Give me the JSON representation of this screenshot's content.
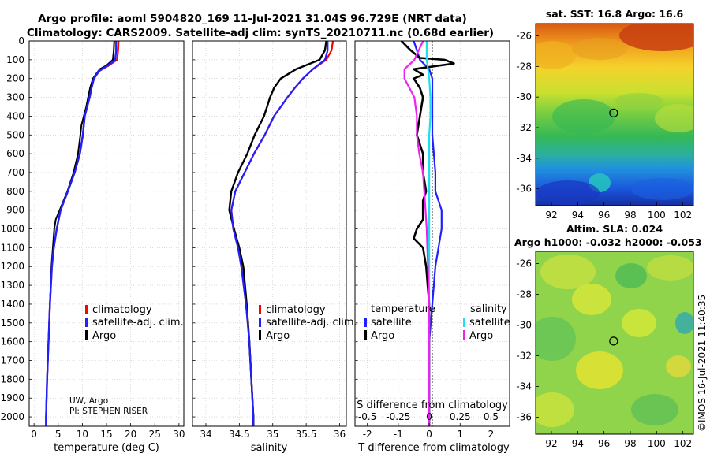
{
  "header": {
    "line1": "Argo profile: aoml 5904820_169 11-Jul-2021 31.04S 96.729E (NRT data)",
    "line2": "Climatology: CARS2009. Satellite-adj clim: synTS_20210711.nc (0.68d earlier)"
  },
  "side_stamp": "©IMOS 16-Jul-2021 11:40:35",
  "colors": {
    "climatology": "#ff0000",
    "satellite": "#2020ff",
    "argo": "#000000",
    "sat_salinity": "#22ddee",
    "argo_salinity": "#ee22ee"
  },
  "chart_data": [
    {
      "type": "line",
      "panel": "temperature",
      "xlabel": "temperature (deg C)",
      "xlim": [
        -1,
        31
      ],
      "xticks": [
        "0",
        "5",
        "10",
        "15",
        "20",
        "25",
        "30"
      ],
      "ylim": [
        0,
        2050
      ],
      "yticks": [
        "0",
        "100",
        "200",
        "300",
        "400",
        "500",
        "600",
        "700",
        "800",
        "900",
        "1000",
        "1100",
        "1200",
        "1300",
        "1400",
        "1500",
        "1600",
        "1700",
        "1800",
        "1900",
        "2000"
      ],
      "legend": [
        "climatology",
        "satellite-adj. clim.",
        "Argo"
      ],
      "annotation": [
        "UW, Argo",
        "PI: STEPHEN RISER"
      ],
      "series": [
        {
          "name": "climatology",
          "depth": [
            0,
            50,
            100,
            130,
            160,
            200,
            250,
            300,
            350,
            400,
            500,
            600,
            700,
            800,
            900,
            1000,
            1100,
            1200,
            1400,
            1600,
            1800,
            2000,
            2050
          ],
          "values": [
            17.5,
            17.4,
            17.2,
            15.5,
            13.5,
            12.4,
            11.9,
            11.5,
            11.0,
            10.5,
            10.1,
            9.5,
            8.4,
            7.0,
            5.5,
            4.7,
            4.1,
            3.7,
            3.3,
            3.0,
            2.7,
            2.5,
            2.5
          ]
        },
        {
          "name": "satellite-adj. clim.",
          "depth": [
            0,
            50,
            100,
            130,
            160,
            200,
            250,
            300,
            350,
            400,
            500,
            600,
            700,
            800,
            900,
            1000,
            1100,
            1200,
            1400,
            1600,
            1800,
            2000,
            2050
          ],
          "values": [
            17.0,
            17.0,
            16.8,
            15.3,
            13.4,
            12.4,
            11.9,
            11.5,
            11.0,
            10.5,
            10.1,
            9.5,
            8.4,
            7.0,
            5.5,
            4.7,
            4.1,
            3.7,
            3.3,
            3.0,
            2.7,
            2.5,
            2.5
          ]
        },
        {
          "name": "Argo",
          "depth": [
            0,
            50,
            100,
            130,
            150,
            170,
            200,
            250,
            300,
            350,
            400,
            450,
            500,
            600,
            700,
            800,
            900,
            950,
            1000,
            1100,
            1200,
            1400,
            1600,
            1800,
            2000,
            2050
          ],
          "values": [
            16.6,
            16.5,
            16.3,
            15.0,
            13.6,
            13.0,
            12.2,
            11.6,
            11.2,
            10.8,
            10.3,
            9.8,
            9.6,
            9.1,
            8.2,
            6.9,
            5.3,
            4.5,
            4.2,
            3.9,
            3.6,
            3.3,
            3.0,
            2.7,
            2.5,
            2.5
          ]
        }
      ]
    },
    {
      "type": "line",
      "panel": "salinity",
      "xlabel": "salinity",
      "xlim": [
        33.8,
        36.1
      ],
      "xticks": [
        "34",
        "34.5",
        "35",
        "35.5",
        "36"
      ],
      "ylim": [
        0,
        2050
      ],
      "legend": [
        "climatology",
        "satellite-adj. clim.",
        "Argo"
      ],
      "series": [
        {
          "name": "climatology",
          "depth": [
            0,
            50,
            100,
            150,
            200,
            250,
            300,
            400,
            500,
            600,
            700,
            800,
            900,
            1000,
            1100,
            1200,
            1400,
            1600,
            1800,
            2000,
            2050
          ],
          "values": [
            35.9,
            35.88,
            35.8,
            35.6,
            35.45,
            35.33,
            35.22,
            35.02,
            34.88,
            34.72,
            34.58,
            34.44,
            34.38,
            34.41,
            34.48,
            34.53,
            34.6,
            34.65,
            34.68,
            34.71,
            34.71
          ]
        },
        {
          "name": "satellite-adj. clim.",
          "depth": [
            0,
            50,
            100,
            150,
            200,
            250,
            300,
            400,
            500,
            600,
            700,
            800,
            900,
            1000,
            1100,
            1200,
            1400,
            1600,
            1800,
            2000,
            2050
          ],
          "values": [
            35.82,
            35.82,
            35.78,
            35.6,
            35.45,
            35.33,
            35.22,
            35.02,
            34.88,
            34.72,
            34.58,
            34.44,
            34.38,
            34.41,
            34.48,
            34.53,
            34.6,
            34.65,
            34.68,
            34.71,
            34.71
          ]
        },
        {
          "name": "Argo",
          "depth": [
            0,
            50,
            100,
            150,
            200,
            250,
            300,
            400,
            500,
            600,
            700,
            800,
            900,
            1000,
            1100,
            1200,
            1400,
            1600,
            1800,
            2000,
            2050
          ],
          "values": [
            35.8,
            35.78,
            35.7,
            35.35,
            35.12,
            35.02,
            34.96,
            34.87,
            34.73,
            34.62,
            34.48,
            34.38,
            34.35,
            34.42,
            34.5,
            34.56,
            34.61,
            34.65,
            34.68,
            34.71,
            34.71
          ]
        }
      ]
    },
    {
      "type": "line",
      "panel": "difference",
      "xlabel": "T difference from climatology",
      "xlabel_top": "S difference from climatology",
      "xlim": [
        -2.4,
        2.6
      ],
      "xticks": [
        "-2",
        "-1",
        "0",
        "1",
        "2"
      ],
      "sticks": [
        "-0.5",
        "-0.25",
        "0",
        "0.25",
        "0.5"
      ],
      "ylim": [
        0,
        2050
      ],
      "legend_temperature_title": "temperature",
      "legend_salinity_title": "salinity",
      "legend_temperature": [
        "satellite",
        "Argo"
      ],
      "legend_salinity": [
        "satellite",
        "Argo"
      ],
      "series": [
        {
          "name": "temperature satellite",
          "depth": [
            0,
            50,
            100,
            150,
            200,
            300,
            500,
            700,
            800,
            900,
            1000,
            1200,
            1600,
            2000,
            2050
          ],
          "values": [
            -0.5,
            -0.4,
            -0.3,
            0.0,
            0.1,
            0.1,
            0.1,
            0.2,
            0.2,
            0.4,
            0.4,
            0.2,
            0.0,
            0.0,
            0.0
          ]
        },
        {
          "name": "temperature Argo",
          "depth": [
            0,
            50,
            90,
            100,
            120,
            150,
            180,
            200,
            250,
            300,
            400,
            500,
            600,
            700,
            800,
            850,
            900,
            950,
            1000,
            1050,
            1100,
            1200,
            1400,
            1600,
            1800,
            2000,
            2050
          ],
          "values": [
            -0.9,
            -0.6,
            -0.3,
            0.5,
            0.8,
            -0.5,
            -0.2,
            -0.5,
            -0.3,
            -0.2,
            -0.3,
            -0.4,
            -0.2,
            -0.2,
            -0.1,
            -0.2,
            -0.2,
            -0.2,
            -0.4,
            -0.5,
            -0.2,
            -0.1,
            0.0,
            0.0,
            0.0,
            0.0,
            0.0
          ]
        },
        {
          "name": "salinity satellite",
          "depth": [
            0,
            100,
            200,
            300,
            400,
            500,
            600,
            700,
            800,
            900,
            1000,
            1200,
            1400,
            1600,
            2000,
            2050
          ],
          "values": [
            -0.02,
            -0.02,
            0.0,
            0.01,
            0.01,
            0.0,
            0.0,
            0.0,
            0.0,
            0.0,
            0.0,
            0.0,
            0.0,
            0.0,
            0.0,
            0.0
          ]
        },
        {
          "name": "salinity Argo",
          "depth": [
            0,
            100,
            150,
            200,
            250,
            300,
            400,
            500,
            600,
            700,
            800,
            900,
            1000,
            1200,
            1400,
            1600,
            2000,
            2050
          ],
          "values": [
            -0.05,
            -0.12,
            -0.2,
            -0.2,
            -0.16,
            -0.12,
            -0.1,
            -0.1,
            -0.08,
            -0.05,
            -0.04,
            -0.03,
            -0.02,
            -0.01,
            0.0,
            0.0,
            0.0,
            0.0
          ]
        }
      ]
    },
    {
      "type": "heatmap",
      "panel": "sst_map",
      "title": "sat. SST: 16.8 Argo: 16.6",
      "xlim": [
        90.8,
        102.8
      ],
      "ylim": [
        -37.1,
        -25.2
      ],
      "xticks": [
        "92",
        "94",
        "96",
        "98",
        "100",
        "102"
      ],
      "yticks": [
        "-26",
        "-28",
        "-30",
        "-32",
        "-34",
        "-36"
      ],
      "marker": [
        96.73,
        -31.04
      ]
    },
    {
      "type": "heatmap",
      "panel": "sla_map",
      "title1": "Altim. SLA: 0.024",
      "title2": "Argo h1000: -0.032 h2000: -0.053",
      "xlim": [
        90.8,
        102.8
      ],
      "ylim": [
        -37.1,
        -25.2
      ],
      "xticks": [
        "92",
        "94",
        "96",
        "98",
        "100",
        "102"
      ],
      "yticks": [
        "-26",
        "-28",
        "-30",
        "-32",
        "-34",
        "-36"
      ],
      "marker": [
        96.73,
        -31.04
      ]
    }
  ]
}
